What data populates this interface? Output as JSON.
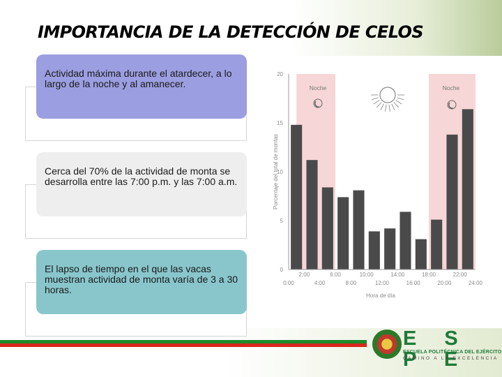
{
  "slide": {
    "title": "IMPORTANCIA DE LA DETECCIÓN DE CELOS",
    "cards": [
      {
        "text": "Actividad máxima durante el atardecer, a lo largo de la noche y al amanecer.",
        "color": "#9b9ee0"
      },
      {
        "text": "Cerca del 70% de la actividad de monta se desarrolla entre las 7:00 p.m. y las 7:00 a.m.",
        "color": "#eeeeee"
      },
      {
        "text": "El lapso de tiempo en el que las vacas muestran actividad de monta varía de 3 a 30 horas.",
        "color": "#88c6cc"
      }
    ]
  },
  "chart_data": {
    "type": "bar",
    "xlabel": "Hora de día",
    "ylabel": "Porcentaje del total de montas",
    "ylim": [
      0,
      20
    ],
    "yticks": [
      "0",
      "5",
      "10",
      "15",
      "20"
    ],
    "x_ticks_upper": [
      "2:00",
      "6:00",
      "10:00",
      "14:00",
      "18:00",
      "22:00"
    ],
    "x_ticks_lower": [
      "0:00",
      "4:00",
      "8:00",
      "12:00",
      "16:00",
      "20:00",
      "24:00"
    ],
    "night_labels": [
      "Noche",
      "Noche"
    ],
    "values": [
      14.8,
      11.2,
      8.4,
      7.4,
      8.1,
      3.9,
      4.2,
      5.9,
      3.1,
      5.1,
      13.8,
      16.4
    ],
    "bar_color": "#4a4a4a",
    "night_color": "#f6d6d6"
  },
  "logo": {
    "letters": "E S P E",
    "line1": "ESCUELA POLITÉCNICA DEL EJÉRCITO",
    "line2": "CAMINO A LA EXCELENCIA",
    "color": "#1f7a3a"
  }
}
